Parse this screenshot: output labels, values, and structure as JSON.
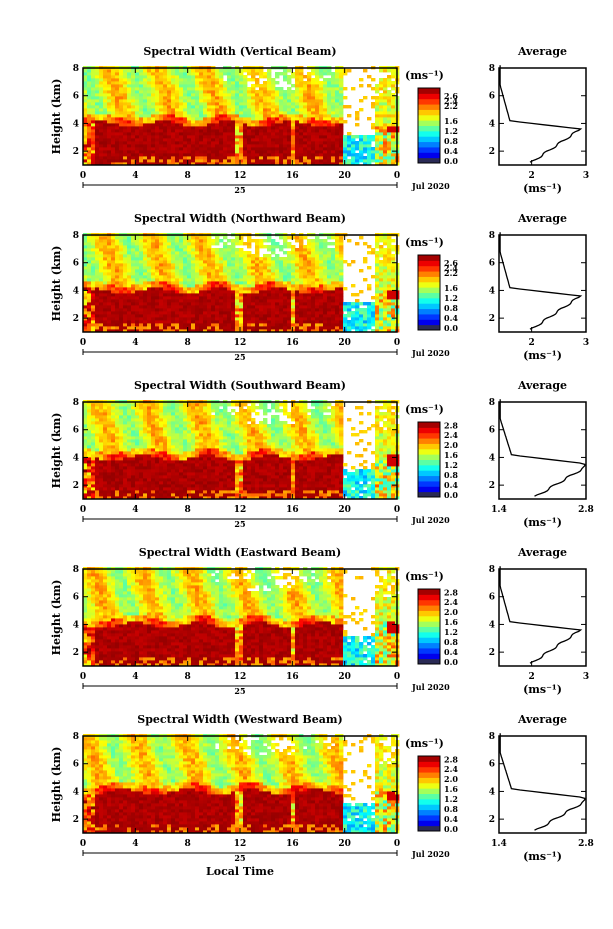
{
  "common": {
    "ylabel": "Height (km)",
    "date_label": "Jul 2020",
    "day_label": "25",
    "xlabel": "Local Time",
    "unit_label": "(ms⁻¹)",
    "avg_title": "Average",
    "avg_unit": "(ms⁻¹)"
  },
  "chart_data": [
    {
      "type": "heatmap",
      "title": "Spectral Width (Vertical Beam)",
      "x_ticks": [
        "0",
        "4",
        "8",
        "12",
        "16",
        "20",
        "0"
      ],
      "y_ticks": [
        "2",
        "4",
        "6",
        "8"
      ],
      "ylim": [
        1,
        8
      ],
      "xlim": [
        0,
        24
      ],
      "colorbar_ticks": [
        "2.6",
        "2.4",
        "2.2",
        "1.6",
        "1.2",
        "0.8",
        "0.4",
        "0.0"
      ],
      "colorbar_range": [
        0.0,
        2.8
      ],
      "avg_profile": {
        "x_ticks": [
          "2",
          "3"
        ],
        "y_ticks": [
          "2",
          "4",
          "6",
          "8"
        ],
        "xlim": [
          1.4,
          3.0
        ]
      }
    },
    {
      "type": "heatmap",
      "title": "Spectral Width (Northward Beam)",
      "x_ticks": [
        "0",
        "4",
        "8",
        "12",
        "16",
        "20",
        "0"
      ],
      "y_ticks": [
        "2",
        "4",
        "6",
        "8"
      ],
      "ylim": [
        1,
        8
      ],
      "xlim": [
        0,
        24
      ],
      "colorbar_ticks": [
        "2.6",
        "2.4",
        "2.2",
        "1.6",
        "1.2",
        "0.8",
        "0.4",
        "0.0"
      ],
      "colorbar_range": [
        0.0,
        2.8
      ],
      "avg_profile": {
        "x_ticks": [
          "2",
          "3"
        ],
        "y_ticks": [
          "2",
          "4",
          "6",
          "8"
        ],
        "xlim": [
          1.4,
          3.0
        ]
      }
    },
    {
      "type": "heatmap",
      "title": "Spectral Width (Southward Beam)",
      "x_ticks": [
        "0",
        "4",
        "8",
        "12",
        "16",
        "20",
        "0"
      ],
      "y_ticks": [
        "2",
        "4",
        "6",
        "8"
      ],
      "ylim": [
        1,
        8
      ],
      "xlim": [
        0,
        24
      ],
      "colorbar_ticks": [
        "2.8",
        "2.4",
        "2.0",
        "1.6",
        "1.2",
        "0.8",
        "0.4",
        "0.0"
      ],
      "colorbar_range": [
        0.0,
        2.8
      ],
      "avg_profile": {
        "x_ticks": [
          "1.4",
          "2.8"
        ],
        "y_ticks": [
          "2",
          "4",
          "6",
          "8"
        ],
        "xlim": [
          1.4,
          2.8
        ]
      }
    },
    {
      "type": "heatmap",
      "title": "Spectral Width (Eastward Beam)",
      "x_ticks": [
        "0",
        "4",
        "8",
        "12",
        "16",
        "20",
        "0"
      ],
      "y_ticks": [
        "2",
        "4",
        "6",
        "8"
      ],
      "ylim": [
        1,
        8
      ],
      "xlim": [
        0,
        24
      ],
      "colorbar_ticks": [
        "2.8",
        "2.4",
        "2.0",
        "1.6",
        "1.2",
        "0.8",
        "0.4",
        "0.0"
      ],
      "colorbar_range": [
        0.0,
        2.8
      ],
      "avg_profile": {
        "x_ticks": [
          "2",
          "3"
        ],
        "y_ticks": [
          "2",
          "4",
          "6",
          "8"
        ],
        "xlim": [
          1.4,
          3.0
        ]
      }
    },
    {
      "type": "heatmap",
      "title": "Spectral Width (Westward Beam)",
      "x_ticks": [
        "0",
        "4",
        "8",
        "12",
        "16",
        "20",
        "0"
      ],
      "y_ticks": [
        "2",
        "4",
        "6",
        "8"
      ],
      "ylim": [
        1,
        8
      ],
      "xlim": [
        0,
        24
      ],
      "colorbar_ticks": [
        "2.8",
        "2.4",
        "2.0",
        "1.6",
        "1.2",
        "0.8",
        "0.4",
        "0.0"
      ],
      "colorbar_range": [
        0.0,
        2.8
      ],
      "avg_profile": {
        "x_ticks": [
          "1.4",
          "2.8"
        ],
        "y_ticks": [
          "2",
          "4",
          "6",
          "8"
        ],
        "xlim": [
          1.4,
          2.8
        ]
      }
    }
  ]
}
